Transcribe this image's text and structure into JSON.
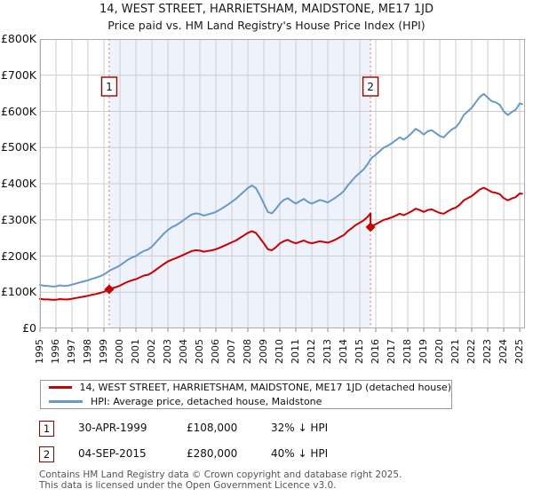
{
  "title": "14, WEST STREET, HARRIETSHAM, MAIDSTONE, ME17 1JD",
  "subtitle": "Price paid vs. HM Land Registry's House Price Index (HPI)",
  "colors": {
    "price_line": "#cc0000",
    "hpi_line": "#6699cc",
    "marker_border": "#990000",
    "event_line": "#e88484",
    "shaded_band": "#eef2fb",
    "grid": "#cccccc",
    "plot_border": "#aaaaaa"
  },
  "chart_data": {
    "type": "line",
    "title": "14, WEST STREET, HARRIETSHAM, MAIDSTONE, ME17 1JD",
    "subtitle": "Price paid vs. HM Land Registry's House Price Index (HPI)",
    "xlabel": "",
    "ylabel": "",
    "xlim": [
      1995,
      2025.33
    ],
    "ylim": [
      0,
      800
    ],
    "grid": true,
    "legend_position": "bottom",
    "y_ticks": [
      {
        "label": "£0",
        "value": 0
      },
      {
        "label": "£100K",
        "value": 100
      },
      {
        "label": "£200K",
        "value": 200
      },
      {
        "label": "£300K",
        "value": 300
      },
      {
        "label": "£400K",
        "value": 400
      },
      {
        "label": "£500K",
        "value": 500
      },
      {
        "label": "£600K",
        "value": 600
      },
      {
        "label": "£700K",
        "value": 700
      },
      {
        "label": "£800K",
        "value": 800
      }
    ],
    "x_ticks": [
      1995,
      1996,
      1997,
      1998,
      1999,
      2000,
      2001,
      2002,
      2003,
      2004,
      2005,
      2006,
      2007,
      2008,
      2009,
      2010,
      2011,
      2012,
      2013,
      2014,
      2015,
      2016,
      2017,
      2018,
      2019,
      2020,
      2021,
      2022,
      2023,
      2024,
      2025
    ],
    "shaded_region": {
      "from": 1999.33,
      "to": 2015.67
    },
    "event_lines": [
      {
        "label": "1",
        "year": 1999.33
      },
      {
        "label": "2",
        "year": 2015.67
      }
    ],
    "markers": [
      {
        "label": "1",
        "year": 1999.33,
        "value": 108
      },
      {
        "label": "2",
        "year": 2015.67,
        "value": 280
      }
    ],
    "series": [
      {
        "name": "HPI: Average price, detached house, Maidstone",
        "color": "#6699cc",
        "unit": "GBP thousands",
        "points": [
          [
            1995.0,
            120
          ],
          [
            1995.25,
            118
          ],
          [
            1995.5,
            117
          ],
          [
            1995.75,
            116
          ],
          [
            1996.0,
            116
          ],
          [
            1996.25,
            119
          ],
          [
            1996.5,
            117
          ],
          [
            1996.75,
            118
          ],
          [
            1997.0,
            121
          ],
          [
            1997.25,
            124
          ],
          [
            1997.5,
            127
          ],
          [
            1997.75,
            130
          ],
          [
            1998.0,
            133
          ],
          [
            1998.25,
            137
          ],
          [
            1998.5,
            140
          ],
          [
            1998.75,
            144
          ],
          [
            1999.0,
            149
          ],
          [
            1999.25,
            156
          ],
          [
            1999.33,
            159
          ],
          [
            1999.5,
            163
          ],
          [
            1999.75,
            168
          ],
          [
            2000.0,
            174
          ],
          [
            2000.25,
            182
          ],
          [
            2000.5,
            190
          ],
          [
            2000.75,
            196
          ],
          [
            2001.0,
            200
          ],
          [
            2001.25,
            208
          ],
          [
            2001.5,
            214
          ],
          [
            2001.75,
            218
          ],
          [
            2002.0,
            226
          ],
          [
            2002.25,
            238
          ],
          [
            2002.5,
            250
          ],
          [
            2002.75,
            262
          ],
          [
            2003.0,
            272
          ],
          [
            2003.25,
            280
          ],
          [
            2003.5,
            285
          ],
          [
            2003.75,
            292
          ],
          [
            2004.0,
            300
          ],
          [
            2004.25,
            308
          ],
          [
            2004.5,
            315
          ],
          [
            2004.75,
            318
          ],
          [
            2005.0,
            316
          ],
          [
            2005.25,
            312
          ],
          [
            2005.5,
            315
          ],
          [
            2005.75,
            318
          ],
          [
            2006.0,
            322
          ],
          [
            2006.25,
            328
          ],
          [
            2006.5,
            335
          ],
          [
            2006.75,
            342
          ],
          [
            2007.0,
            350
          ],
          [
            2007.25,
            358
          ],
          [
            2007.5,
            368
          ],
          [
            2007.75,
            378
          ],
          [
            2008.0,
            388
          ],
          [
            2008.25,
            395
          ],
          [
            2008.5,
            388
          ],
          [
            2008.75,
            368
          ],
          [
            2009.0,
            345
          ],
          [
            2009.25,
            322
          ],
          [
            2009.5,
            318
          ],
          [
            2009.75,
            330
          ],
          [
            2010.0,
            345
          ],
          [
            2010.25,
            355
          ],
          [
            2010.5,
            360
          ],
          [
            2010.75,
            352
          ],
          [
            2011.0,
            345
          ],
          [
            2011.25,
            352
          ],
          [
            2011.5,
            358
          ],
          [
            2011.75,
            350
          ],
          [
            2012.0,
            345
          ],
          [
            2012.25,
            350
          ],
          [
            2012.5,
            355
          ],
          [
            2012.75,
            352
          ],
          [
            2013.0,
            348
          ],
          [
            2013.25,
            355
          ],
          [
            2013.5,
            362
          ],
          [
            2013.75,
            370
          ],
          [
            2014.0,
            380
          ],
          [
            2014.25,
            395
          ],
          [
            2014.5,
            408
          ],
          [
            2014.75,
            420
          ],
          [
            2015.0,
            430
          ],
          [
            2015.25,
            440
          ],
          [
            2015.5,
            455
          ],
          [
            2015.67,
            467
          ],
          [
            2015.75,
            472
          ],
          [
            2016.0,
            480
          ],
          [
            2016.25,
            490
          ],
          [
            2016.5,
            500
          ],
          [
            2016.75,
            505
          ],
          [
            2017.0,
            512
          ],
          [
            2017.25,
            520
          ],
          [
            2017.5,
            528
          ],
          [
            2017.75,
            522
          ],
          [
            2018.0,
            530
          ],
          [
            2018.25,
            540
          ],
          [
            2018.5,
            552
          ],
          [
            2018.75,
            545
          ],
          [
            2019.0,
            536
          ],
          [
            2019.25,
            545
          ],
          [
            2019.5,
            548
          ],
          [
            2019.75,
            540
          ],
          [
            2020.0,
            532
          ],
          [
            2020.25,
            528
          ],
          [
            2020.5,
            540
          ],
          [
            2020.75,
            550
          ],
          [
            2021.0,
            556
          ],
          [
            2021.25,
            570
          ],
          [
            2021.5,
            590
          ],
          [
            2021.75,
            600
          ],
          [
            2022.0,
            610
          ],
          [
            2022.25,
            625
          ],
          [
            2022.5,
            640
          ],
          [
            2022.75,
            648
          ],
          [
            2023.0,
            638
          ],
          [
            2023.25,
            628
          ],
          [
            2023.5,
            625
          ],
          [
            2023.75,
            618
          ],
          [
            2024.0,
            600
          ],
          [
            2024.25,
            590
          ],
          [
            2024.5,
            598
          ],
          [
            2024.75,
            605
          ],
          [
            2025.0,
            622
          ],
          [
            2025.15,
            620
          ]
        ]
      },
      {
        "name": "14, WEST STREET, HARRIETSHAM, MAIDSTONE, ME17 1JD (detached house)",
        "color": "#cc0000",
        "unit": "GBP thousands",
        "points": [
          [
            1995.0,
            82
          ],
          [
            1995.25,
            80
          ],
          [
            1995.5,
            80
          ],
          [
            1995.75,
            79
          ],
          [
            1996.0,
            79
          ],
          [
            1996.25,
            81
          ],
          [
            1996.5,
            80
          ],
          [
            1996.75,
            80
          ],
          [
            1997.0,
            82
          ],
          [
            1997.25,
            84
          ],
          [
            1997.5,
            86
          ],
          [
            1997.75,
            88
          ],
          [
            1998.0,
            90
          ],
          [
            1998.25,
            93
          ],
          [
            1998.5,
            95
          ],
          [
            1998.75,
            98
          ],
          [
            1999.0,
            101
          ],
          [
            1999.25,
            106
          ],
          [
            1999.33,
            108
          ],
          [
            1999.5,
            111
          ],
          [
            1999.75,
            114
          ],
          [
            2000.0,
            118
          ],
          [
            2000.25,
            124
          ],
          [
            2000.5,
            129
          ],
          [
            2000.75,
            133
          ],
          [
            2001.0,
            136
          ],
          [
            2001.25,
            141
          ],
          [
            2001.5,
            146
          ],
          [
            2001.75,
            148
          ],
          [
            2002.0,
            154
          ],
          [
            2002.25,
            162
          ],
          [
            2002.5,
            170
          ],
          [
            2002.75,
            178
          ],
          [
            2003.0,
            185
          ],
          [
            2003.25,
            190
          ],
          [
            2003.5,
            194
          ],
          [
            2003.75,
            199
          ],
          [
            2004.0,
            204
          ],
          [
            2004.25,
            209
          ],
          [
            2004.5,
            214
          ],
          [
            2004.75,
            216
          ],
          [
            2005.0,
            215
          ],
          [
            2005.25,
            212
          ],
          [
            2005.5,
            214
          ],
          [
            2005.75,
            216
          ],
          [
            2006.0,
            219
          ],
          [
            2006.25,
            223
          ],
          [
            2006.5,
            228
          ],
          [
            2006.75,
            233
          ],
          [
            2007.0,
            238
          ],
          [
            2007.25,
            243
          ],
          [
            2007.5,
            250
          ],
          [
            2007.75,
            257
          ],
          [
            2008.0,
            264
          ],
          [
            2008.25,
            269
          ],
          [
            2008.5,
            264
          ],
          [
            2008.75,
            250
          ],
          [
            2009.0,
            235
          ],
          [
            2009.25,
            219
          ],
          [
            2009.5,
            216
          ],
          [
            2009.75,
            224
          ],
          [
            2010.0,
            235
          ],
          [
            2010.25,
            241
          ],
          [
            2010.5,
            245
          ],
          [
            2010.75,
            239
          ],
          [
            2011.0,
            235
          ],
          [
            2011.25,
            239
          ],
          [
            2011.5,
            243
          ],
          [
            2011.75,
            238
          ],
          [
            2012.0,
            235
          ],
          [
            2012.25,
            238
          ],
          [
            2012.5,
            241
          ],
          [
            2012.75,
            239
          ],
          [
            2013.0,
            237
          ],
          [
            2013.25,
            241
          ],
          [
            2013.5,
            246
          ],
          [
            2013.75,
            252
          ],
          [
            2014.0,
            258
          ],
          [
            2014.25,
            269
          ],
          [
            2014.5,
            277
          ],
          [
            2014.75,
            286
          ],
          [
            2015.0,
            292
          ],
          [
            2015.25,
            299
          ],
          [
            2015.5,
            309
          ],
          [
            2015.67,
            318
          ],
          [
            2015.67,
            280
          ],
          [
            2015.75,
            283
          ],
          [
            2016.0,
            288
          ],
          [
            2016.25,
            294
          ],
          [
            2016.5,
            300
          ],
          [
            2016.75,
            303
          ],
          [
            2017.0,
            307
          ],
          [
            2017.25,
            312
          ],
          [
            2017.5,
            317
          ],
          [
            2017.75,
            313
          ],
          [
            2018.0,
            318
          ],
          [
            2018.25,
            324
          ],
          [
            2018.5,
            331
          ],
          [
            2018.75,
            327
          ],
          [
            2019.0,
            322
          ],
          [
            2019.25,
            327
          ],
          [
            2019.5,
            329
          ],
          [
            2019.75,
            324
          ],
          [
            2020.0,
            319
          ],
          [
            2020.25,
            317
          ],
          [
            2020.5,
            324
          ],
          [
            2020.75,
            330
          ],
          [
            2021.0,
            334
          ],
          [
            2021.25,
            342
          ],
          [
            2021.5,
            354
          ],
          [
            2021.75,
            360
          ],
          [
            2022.0,
            366
          ],
          [
            2022.25,
            375
          ],
          [
            2022.5,
            384
          ],
          [
            2022.75,
            389
          ],
          [
            2023.0,
            383
          ],
          [
            2023.25,
            377
          ],
          [
            2023.5,
            375
          ],
          [
            2023.75,
            371
          ],
          [
            2024.0,
            360
          ],
          [
            2024.25,
            354
          ],
          [
            2024.5,
            359
          ],
          [
            2024.75,
            363
          ],
          [
            2025.0,
            373
          ],
          [
            2025.15,
            372
          ]
        ]
      }
    ]
  },
  "legend": {
    "items": [
      {
        "swatch_color": "#cc0000",
        "label": "14, WEST STREET, HARRIETSHAM, MAIDSTONE, ME17 1JD (detached house)"
      },
      {
        "swatch_color": "#6699cc",
        "label": "HPI: Average price, detached house, Maidstone"
      }
    ]
  },
  "transactions": [
    {
      "num": "1",
      "date": "30-APR-1999",
      "price": "£108,000",
      "vs_hpi": "32% ↓ HPI"
    },
    {
      "num": "2",
      "date": "04-SEP-2015",
      "price": "£280,000",
      "vs_hpi": "40% ↓ HPI"
    }
  ],
  "footer": {
    "line1": "Contains HM Land Registry data © Crown copyright and database right 2025.",
    "line2": "This data is licensed under the Open Government Licence v3.0."
  }
}
